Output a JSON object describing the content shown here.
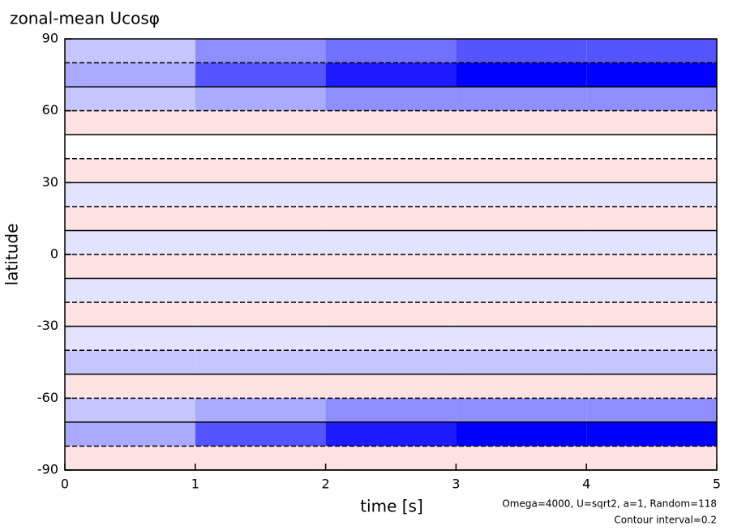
{
  "chart_data": {
    "type": "heatmap",
    "title": "zonal-mean Ucosφ",
    "x_label": "time [s]",
    "y_label": "latitude",
    "notes": [
      "Omega=4000, U=sqrt2, a=1, Random=118",
      "Contour interval=0.2"
    ],
    "x": [
      0.5,
      1.5,
      2.5,
      3.5,
      4.5
    ],
    "y": [
      -85,
      -75,
      -65,
      -55,
      -45,
      -35,
      -25,
      -15,
      -5,
      5,
      15,
      25,
      35,
      45,
      55,
      65,
      75,
      85
    ],
    "values": [
      [
        0.2,
        0.2,
        0.2,
        0.2,
        0.2
      ],
      [
        -0.6,
        -1.2,
        -1.6,
        -1.8,
        -1.8
      ],
      [
        -0.4,
        -0.6,
        -0.8,
        -0.8,
        -0.8
      ],
      [
        0.2,
        0.2,
        0.2,
        0.2,
        0.2
      ],
      [
        -0.4,
        -0.4,
        -0.4,
        -0.4,
        -0.4
      ],
      [
        -0.2,
        -0.2,
        -0.2,
        -0.2,
        -0.2
      ],
      [
        0.2,
        0.2,
        0.2,
        0.2,
        0.2
      ],
      [
        -0.2,
        -0.2,
        -0.2,
        -0.2,
        -0.2
      ],
      [
        0.2,
        0.2,
        0.2,
        0.2,
        0.2
      ],
      [
        -0.2,
        -0.2,
        -0.2,
        -0.2,
        -0.2
      ],
      [
        0.2,
        0.2,
        0.2,
        0.2,
        0.2
      ],
      [
        -0.2,
        -0.2,
        -0.2,
        -0.2,
        -0.2
      ],
      [
        0.2,
        0.2,
        0.2,
        0.2,
        0.2
      ],
      [
        0,
        0,
        0,
        0,
        0
      ],
      [
        0.2,
        0.2,
        0.2,
        0.2,
        0.2
      ],
      [
        -0.4,
        -0.6,
        -0.8,
        -0.8,
        -0.8
      ],
      [
        -0.6,
        -1.2,
        -1.6,
        -1.8,
        -1.8
      ],
      [
        -0.4,
        -0.8,
        -1.0,
        -1.2,
        -1.2
      ]
    ],
    "xlim": [
      0,
      5
    ],
    "xticks": [
      0,
      1,
      2,
      3,
      4,
      5
    ],
    "ylim": [
      -90,
      90
    ],
    "yticks": [
      -90,
      -60,
      -30,
      0,
      30,
      60,
      90
    ],
    "negative_color": "#0000ff",
    "positive_color": "#ff0000"
  }
}
